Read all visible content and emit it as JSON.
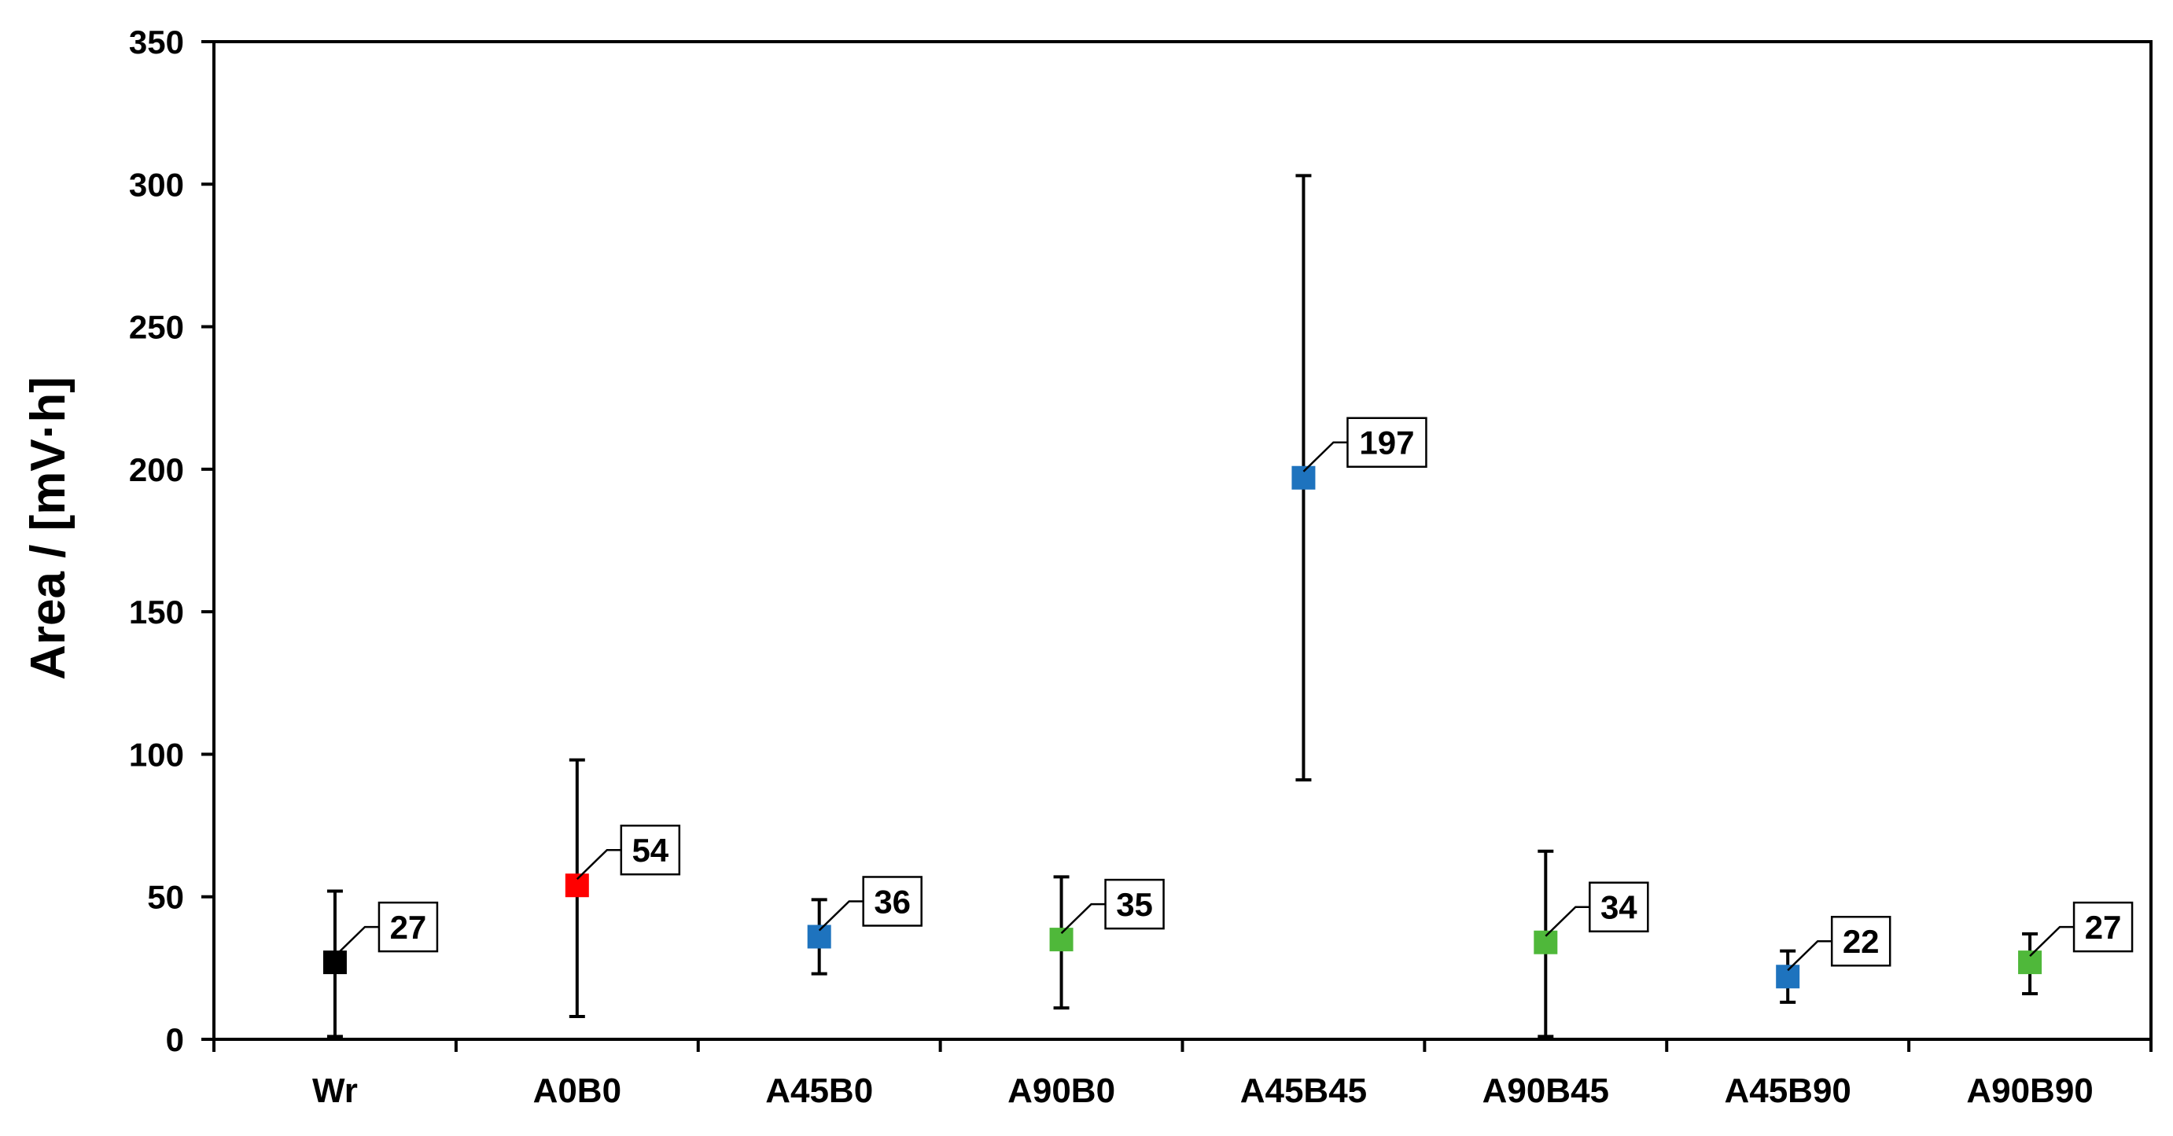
{
  "chart_data": {
    "type": "scatter",
    "title": "",
    "xlabel": "",
    "ylabel": "Area / [mV·h]",
    "ylim": [
      0,
      350
    ],
    "yticks": [
      0,
      50,
      100,
      150,
      200,
      250,
      300,
      350
    ],
    "ytick_labels": [
      "0",
      "50",
      "100",
      "150",
      "200",
      "250",
      "300",
      "350"
    ],
    "grid": false,
    "categories": [
      "Wr",
      "A0B0",
      "A45B0",
      "A90B0",
      "A45B45",
      "A90B45",
      "A45B90",
      "A90B90"
    ],
    "values": [
      27,
      54,
      36,
      35,
      197,
      34,
      22,
      27
    ],
    "error_low": [
      1,
      8,
      23,
      11,
      91,
      1,
      13,
      16
    ],
    "error_high": [
      52,
      98,
      49,
      57,
      303,
      66,
      31,
      37
    ],
    "data_labels": [
      "27",
      "54",
      "36",
      "35",
      "197",
      "34",
      "22",
      "27"
    ],
    "colors": [
      "#000000",
      "#ff0000",
      "#1e73be",
      "#4fb83a",
      "#1e73be",
      "#4fb83a",
      "#1e73be",
      "#4fb83a"
    ]
  }
}
